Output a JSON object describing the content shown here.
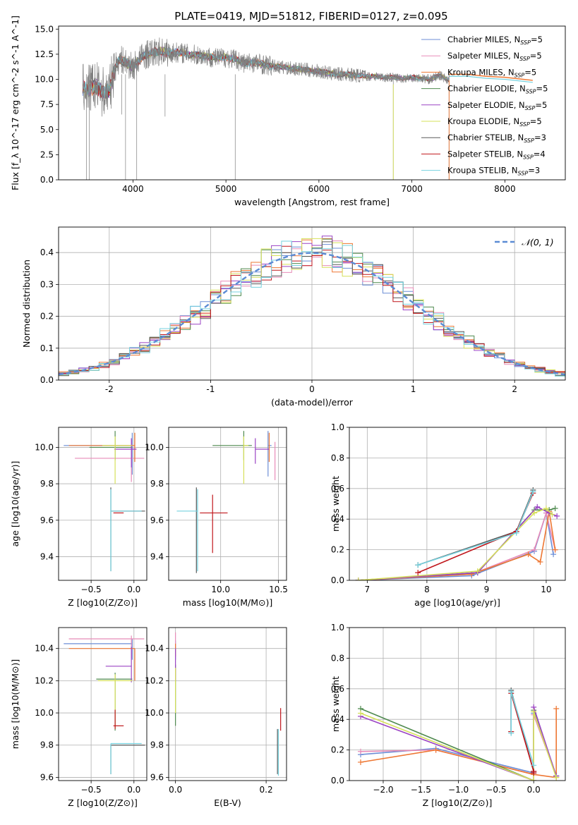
{
  "figure_title": "PLATE=0419, MJD=51812, FIBERID=0127, z=0.095",
  "series_styles": [
    {
      "name": "Chabrier MILES",
      "n": "5",
      "color": "#6c8ed6"
    },
    {
      "name": "Salpeter MILES",
      "n": "5",
      "color": "#e88bb8"
    },
    {
      "name": "Kroupa MILES",
      "n": "5",
      "color": "#ee7733"
    },
    {
      "name": "Chabrier ELODIE",
      "n": "5",
      "color": "#4f8a4f"
    },
    {
      "name": "Salpeter ELODIE",
      "n": "5",
      "color": "#9b44c4"
    },
    {
      "name": "Kroupa ELODIE",
      "n": "5",
      "color": "#d6e05a"
    },
    {
      "name": "Chabrier STELIB",
      "n": "3",
      "color": "#5a5a5a"
    },
    {
      "name": "Salpeter STELIB",
      "n": "4",
      "color": "#c0171c"
    },
    {
      "name": "Kroupa STELIB",
      "n": "3",
      "color": "#76d2df"
    }
  ],
  "chart_data": [
    {
      "type": "line",
      "title": "PLATE=0419, MJD=51812, FIBERID=0127, z=0.095",
      "xlabel": "wavelength [Angstrom, rest frame]",
      "ylabel": "Flux [f_λ 10^-17 erg cm^-2 s^-1 A^-1]",
      "xlim": [
        3200,
        8650
      ],
      "ylim": [
        0,
        15.3
      ],
      "xticks": [
        4000,
        5000,
        6000,
        7000,
        8000
      ],
      "yticks": [
        0.0,
        2.5,
        5.0,
        7.5,
        10.0,
        12.5,
        15.0
      ],
      "data_series": {
        "name": "data",
        "color": "#808080"
      },
      "spectrum_x": [
        3450,
        3500,
        3600,
        3700,
        3750,
        3800,
        3850,
        3900,
        4000,
        4100,
        4200,
        4300,
        4400,
        4500,
        4600,
        4700,
        4800,
        4900,
        5000,
        5100,
        5200,
        5300,
        5400,
        5500,
        5600,
        5700,
        5800,
        5900,
        6000,
        6100,
        6200,
        6300,
        6400,
        6500,
        6600,
        6700,
        6800,
        6900,
        7000,
        7100,
        7200,
        7300,
        7400
      ],
      "spectrum_y": [
        9.2,
        9.0,
        9.3,
        8.6,
        9.0,
        11.0,
        12.0,
        11.8,
        11.2,
        12.3,
        12.6,
        12.8,
        12.6,
        12.7,
        12.5,
        12.4,
        12.3,
        12.1,
        12.2,
        12.0,
        11.6,
        11.7,
        11.5,
        11.3,
        11.2,
        11.1,
        11.0,
        10.9,
        10.8,
        10.6,
        10.5,
        10.5,
        10.4,
        10.3,
        10.3,
        10.2,
        10.2,
        10.1,
        10.2,
        10.1,
        10.0,
        10.4,
        9.9
      ],
      "model_extension_x": [
        7400,
        7600,
        7800,
        8000,
        8200,
        8300
      ],
      "model_extension_y": [
        10.5,
        10.5,
        10.3,
        10.2,
        10.0,
        9.9
      ],
      "series": [
        {
          "name": "Chabrier MILES, N_SSP=5"
        },
        {
          "name": "Salpeter MILES, N_SSP=5"
        },
        {
          "name": "Kroupa MILES, N_SSP=5"
        },
        {
          "name": "Chabrier ELODIE, N_SSP=5"
        },
        {
          "name": "Salpeter ELODIE, N_SSP=5"
        },
        {
          "name": "Kroupa ELODIE, N_SSP=5"
        },
        {
          "name": "Chabrier STELIB, N_SSP=3"
        },
        {
          "name": "Salpeter STELIB, N_SSP=4"
        },
        {
          "name": "Kroupa STELIB, N_SSP=3"
        }
      ],
      "legend": "top-right",
      "grid": false
    },
    {
      "type": "line",
      "xlabel": "(data-model)/error",
      "ylabel": "Normed distribution",
      "xlim": [
        -2.5,
        2.5
      ],
      "ylim": [
        0,
        0.48
      ],
      "xticks": [
        -2,
        -1,
        0,
        1,
        2
      ],
      "yticks": [
        0.0,
        0.1,
        0.2,
        0.3,
        0.4
      ],
      "grid": true,
      "legend": "top-right",
      "reference_curve": {
        "name": "𝒩(0, 1)",
        "color": "#5b8bd4"
      },
      "histogram_bin_width": 0.1,
      "histogram_series_count": 9
    },
    {
      "type": "scatter",
      "xlabel": "Z [log10(Z/Z⊙)]",
      "ylabel": "age  [log10(age/yr)]",
      "xlim": [
        -0.88,
        0.15
      ],
      "ylim": [
        9.27,
        10.11
      ],
      "xticks": [
        -0.5,
        0.0
      ],
      "xtick_labels": [
        "−0.5",
        "0.0"
      ],
      "yticks": [
        9.4,
        9.6,
        9.8,
        10.0
      ],
      "grid": true,
      "points": [
        {
          "series": "Chabrier MILES",
          "x": -0.02,
          "y": 10.01,
          "xerr": [
            0.8,
            0.0
          ],
          "yerr": [
            0.16,
            0.07
          ]
        },
        {
          "series": "Salpeter MILES",
          "x": -0.03,
          "y": 9.94,
          "xerr": [
            0.66,
            0.15
          ],
          "yerr": [
            0.13,
            0.1
          ]
        },
        {
          "series": "Kroupa MILES",
          "x": 0.01,
          "y": 10.01,
          "xerr": [
            0.77,
            0.0
          ],
          "yerr": [
            0.09,
            0.07
          ]
        },
        {
          "series": "Chabrier ELODIE",
          "x": -0.22,
          "y": 10.0,
          "xerr": [
            0.3,
            0.2
          ],
          "yerr": [
            0.07,
            0.09
          ]
        },
        {
          "series": "Salpeter ELODIE",
          "x": -0.03,
          "y": 9.99,
          "xerr": [
            0.2,
            0.06
          ],
          "yerr": [
            0.1,
            0.06
          ]
        },
        {
          "series": "Kroupa ELODIE",
          "x": -0.22,
          "y": 10.01,
          "xerr": [
            0.15,
            0.2
          ],
          "yerr": [
            0.21,
            0.05
          ]
        },
        {
          "series": "Chabrier STELIB",
          "x": -0.27,
          "y": 9.65,
          "xerr": [
            0.0,
            0.4
          ],
          "yerr": [
            0.33,
            0.13
          ]
        },
        {
          "series": "Salpeter STELIB",
          "x": -0.22,
          "y": 9.64,
          "xerr": [
            0.02,
            0.1
          ],
          "yerr": [
            0.0,
            0.0
          ]
        },
        {
          "series": "Kroupa STELIB",
          "x": -0.27,
          "y": 9.65,
          "xerr": [
            0.0,
            0.36
          ],
          "yerr": [
            0.33,
            0.12
          ]
        }
      ]
    },
    {
      "type": "scatter",
      "xlabel": "mass [log10(M/M⊙)]",
      "ylabel": "",
      "xlim": [
        9.55,
        10.57
      ],
      "ylim": [
        9.27,
        10.11
      ],
      "xticks": [
        10.0,
        10.5
      ],
      "yticks": [
        9.4,
        9.6,
        9.8,
        10.0
      ],
      "grid": true,
      "points": [
        {
          "series": "Chabrier MILES",
          "x": 10.41,
          "y": 10.01,
          "xerr": [
            0.0,
            0.03
          ],
          "yerr": [
            0.17,
            0.08
          ]
        },
        {
          "series": "Salpeter MILES",
          "x": 10.47,
          "y": 9.94,
          "xerr": [
            0.0,
            0.0
          ],
          "yerr": [
            0.12,
            0.09
          ]
        },
        {
          "series": "Kroupa MILES",
          "x": 10.42,
          "y": 10.01,
          "xerr": [
            0.0,
            0.0
          ],
          "yerr": [
            0.09,
            0.07
          ]
        },
        {
          "series": "Chabrier ELODIE",
          "x": 10.2,
          "y": 10.01,
          "xerr": [
            0.27,
            0.07
          ],
          "yerr": [
            0.08,
            0.08
          ]
        },
        {
          "series": "Salpeter ELODIE",
          "x": 10.3,
          "y": 9.99,
          "xerr": [
            0.0,
            0.12
          ],
          "yerr": [
            0.08,
            0.06
          ]
        },
        {
          "series": "Kroupa ELODIE",
          "x": 10.2,
          "y": 10.01,
          "xerr": [
            0.0,
            0.04
          ],
          "yerr": [
            0.21,
            0.05
          ]
        },
        {
          "series": "Chabrier STELIB",
          "x": 9.79,
          "y": 9.65,
          "xerr": [
            0.0,
            0.0
          ],
          "yerr": [
            0.34,
            0.13
          ]
        },
        {
          "series": "Salpeter STELIB",
          "x": 9.93,
          "y": 9.64,
          "xerr": [
            0.11,
            0.13
          ],
          "yerr": [
            0.22,
            0.1
          ]
        },
        {
          "series": "Kroupa STELIB",
          "x": 9.8,
          "y": 9.65,
          "xerr": [
            0.18,
            0.0
          ],
          "yerr": [
            0.33,
            0.12
          ]
        }
      ]
    },
    {
      "type": "line",
      "xlabel": "age  [log10(age/yr)]",
      "ylabel": "mass weight",
      "xlim": [
        6.7,
        10.32
      ],
      "ylim": [
        0,
        1.0
      ],
      "xticks": [
        7,
        8,
        9,
        10
      ],
      "yticks": [
        0.0,
        0.2,
        0.4,
        0.6,
        0.8,
        1.0
      ],
      "grid": true,
      "series": [
        {
          "name": "Chabrier MILES",
          "x": [
            6.85,
            8.75,
            9.8,
            10.0,
            10.12
          ],
          "y": [
            0.0,
            0.03,
            0.19,
            0.44,
            0.17
          ]
        },
        {
          "name": "Salpeter MILES",
          "x": [
            6.85,
            8.75,
            9.8,
            10.0,
            10.15
          ],
          "y": [
            0.0,
            0.04,
            0.2,
            0.44,
            0.2
          ]
        },
        {
          "name": "Kroupa MILES",
          "x": [
            6.85,
            8.75,
            9.7,
            9.9,
            10.05,
            10.15
          ],
          "y": [
            0.0,
            0.04,
            0.17,
            0.12,
            0.45,
            0.2
          ]
        },
        {
          "name": "Chabrier ELODIE",
          "x": [
            6.85,
            8.85,
            9.8,
            10.05,
            10.15
          ],
          "y": [
            0.0,
            0.05,
            0.46,
            0.46,
            0.47
          ]
        },
        {
          "name": "Salpeter ELODIE",
          "x": [
            6.85,
            8.85,
            9.85,
            10.05,
            10.18
          ],
          "y": [
            0.0,
            0.05,
            0.48,
            0.44,
            0.42
          ]
        },
        {
          "name": "Kroupa ELODIE",
          "x": [
            6.85,
            8.85,
            9.8,
            10.0,
            10.1
          ],
          "y": [
            0.0,
            0.06,
            0.44,
            0.47,
            0.43
          ]
        },
        {
          "name": "Chabrier STELIB",
          "x": [
            7.85,
            9.5,
            9.78
          ],
          "y": [
            0.1,
            0.32,
            0.59
          ]
        },
        {
          "name": "Salpeter STELIB",
          "x": [
            7.85,
            9.5,
            9.78
          ],
          "y": [
            0.05,
            0.32,
            0.57
          ]
        },
        {
          "name": "Kroupa STELIB",
          "x": [
            7.85,
            9.5,
            9.78
          ],
          "y": [
            0.1,
            0.31,
            0.58
          ]
        }
      ]
    },
    {
      "type": "scatter",
      "xlabel": "Z [log10(Z/Z⊙)]",
      "ylabel": "mass [log10(M/M⊙)]",
      "xlim": [
        -0.88,
        0.15
      ],
      "ylim": [
        9.58,
        10.53
      ],
      "xticks": [
        -0.5,
        0.0
      ],
      "xtick_labels": [
        "−0.5",
        "0.0"
      ],
      "yticks": [
        9.6,
        9.8,
        10.0,
        10.2,
        10.4
      ],
      "grid": true,
      "points": [
        {
          "series": "Chabrier MILES",
          "x": -0.02,
          "y": 10.43,
          "xerr": [
            0.8,
            0.0
          ],
          "yerr": [
            0.1,
            0.03
          ]
        },
        {
          "series": "Salpeter MILES",
          "x": -0.03,
          "y": 10.46,
          "xerr": [
            0.73,
            0.15
          ],
          "yerr": [
            0.12,
            0.02
          ]
        },
        {
          "series": "Kroupa MILES",
          "x": 0.01,
          "y": 10.4,
          "xerr": [
            0.77,
            0.0
          ],
          "yerr": [
            0.2,
            0.0
          ]
        },
        {
          "series": "Chabrier ELODIE",
          "x": -0.22,
          "y": 10.21,
          "xerr": [
            0.22,
            0.2
          ],
          "yerr": [
            0.32,
            0.04
          ]
        },
        {
          "series": "Salpeter ELODIE",
          "x": -0.03,
          "y": 10.29,
          "xerr": [
            0.3,
            0.0
          ],
          "yerr": [
            0.1,
            0.12
          ]
        },
        {
          "series": "Kroupa ELODIE",
          "x": -0.22,
          "y": 10.2,
          "xerr": [
            0.2,
            0.2
          ],
          "yerr": [
            0.3,
            0.04
          ]
        },
        {
          "series": "Chabrier STELIB",
          "x": -0.27,
          "y": 9.8,
          "xerr": [
            0.0,
            0.4
          ],
          "yerr": [
            0.18,
            0.0
          ]
        },
        {
          "series": "Salpeter STELIB",
          "x": -0.22,
          "y": 9.92,
          "xerr": [
            0.02,
            0.1
          ],
          "yerr": [
            0.02,
            0.1
          ]
        },
        {
          "series": "Kroupa STELIB",
          "x": -0.27,
          "y": 9.81,
          "xerr": [
            0.0,
            0.36
          ],
          "yerr": [
            0.19,
            0.0
          ]
        }
      ]
    },
    {
      "type": "scatter",
      "xlabel": "E(B-V)",
      "ylabel": "",
      "xlim": [
        -0.015,
        0.245
      ],
      "ylim": [
        9.58,
        10.53
      ],
      "xticks": [
        0.0,
        0.2
      ],
      "yticks": [
        9.6,
        9.8,
        10.0,
        10.2,
        10.4
      ],
      "grid": true,
      "points": [
        {
          "series": "Chabrier MILES",
          "x": 0.0,
          "y": 10.41,
          "yerr": [
            0.08,
            0.04
          ]
        },
        {
          "series": "Salpeter MILES",
          "x": 0.0,
          "y": 10.45,
          "yerr": [
            0.05,
            0.05
          ]
        },
        {
          "series": "Kroupa MILES",
          "x": 0.0,
          "y": 10.4,
          "yerr": [
            0.05,
            0.03
          ]
        },
        {
          "series": "Chabrier ELODIE",
          "x": 0.0,
          "y": 10.22,
          "yerr": [
            0.3,
            0.08
          ]
        },
        {
          "series": "Salpeter ELODIE",
          "x": 0.0,
          "y": 10.3,
          "yerr": [
            0.1,
            0.1
          ]
        },
        {
          "series": "Kroupa ELODIE",
          "x": 0.0,
          "y": 10.2,
          "yerr": [
            0.2,
            0.08
          ]
        },
        {
          "series": "Chabrier STELIB",
          "x": 0.225,
          "y": 9.8,
          "yerr": [
            0.18,
            0.1
          ]
        },
        {
          "series": "Salpeter STELIB",
          "x": 0.232,
          "y": 9.92,
          "yerr": [
            0.03,
            0.11
          ]
        },
        {
          "series": "Kroupa STELIB",
          "x": 0.227,
          "y": 9.8,
          "yerr": [
            0.19,
            0.1
          ]
        }
      ]
    },
    {
      "type": "line",
      "xlabel": "Z [log10(Z/Z⊙)]",
      "ylabel": "mass weight",
      "xlim": [
        -2.45,
        0.42
      ],
      "ylim": [
        0,
        1.0
      ],
      "xticks": [
        -2.0,
        -1.5,
        -1.0,
        -0.5,
        0.0
      ],
      "xtick_labels": [
        "−2.0",
        "−1.5",
        "−1.0",
        "−0.5",
        "0.0"
      ],
      "yticks": [
        0.0,
        0.2,
        0.4,
        0.6,
        0.8,
        1.0
      ],
      "grid": true,
      "series": [
        {
          "name": "Chabrier MILES",
          "x": [
            -2.3,
            -1.3,
            0.0,
            0.0,
            0.3
          ],
          "y": [
            0.17,
            0.21,
            0.05,
            0.44,
            0.03
          ]
        },
        {
          "name": "Salpeter MILES",
          "x": [
            -2.3,
            -1.3,
            0.0,
            0.0,
            0.3
          ],
          "y": [
            0.19,
            0.2,
            0.04,
            0.43,
            0.03
          ]
        },
        {
          "name": "Kroupa MILES",
          "x": [
            -2.3,
            -1.3,
            0.0,
            0.3,
            0.3
          ],
          "y": [
            0.12,
            0.2,
            0.04,
            0.02,
            0.47
          ]
        },
        {
          "name": "Chabrier ELODIE",
          "x": [
            -2.3,
            0.0,
            0.0,
            0.3
          ],
          "y": [
            0.47,
            0.0,
            0.46,
            0.03
          ]
        },
        {
          "name": "Salpeter ELODIE",
          "x": [
            -2.3,
            0.0,
            0.0,
            0.3
          ],
          "y": [
            0.42,
            0.0,
            0.48,
            0.03
          ]
        },
        {
          "name": "Kroupa ELODIE",
          "x": [
            -2.3,
            0.0,
            0.0,
            0.3
          ],
          "y": [
            0.44,
            0.0,
            0.45,
            0.02
          ]
        },
        {
          "name": "Chabrier STELIB",
          "x": [
            -0.3,
            -0.3,
            0.0
          ],
          "y": [
            0.32,
            0.59,
            0.06
          ]
        },
        {
          "name": "Salpeter STELIB",
          "x": [
            -0.3,
            -0.3,
            0.0,
            0.0
          ],
          "y": [
            0.32,
            0.57,
            0.06,
            0.05
          ]
        },
        {
          "name": "Kroupa STELIB",
          "x": [
            -0.3,
            -0.3,
            0.0
          ],
          "y": [
            0.31,
            0.58,
            0.1
          ]
        }
      ]
    }
  ]
}
